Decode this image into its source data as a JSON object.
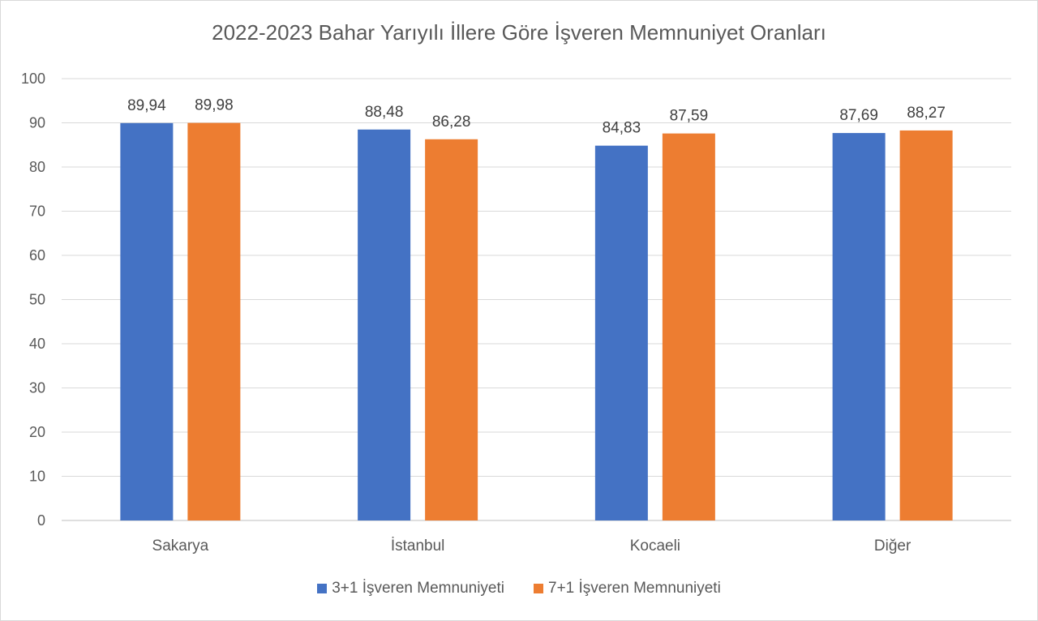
{
  "chart_data": {
    "type": "bar",
    "title": "2022-2023 Bahar Yarıyılı İllere Göre İşveren Memnuniyet Oranları",
    "categories": [
      "Sakarya",
      "İstanbul",
      "Kocaeli",
      "Diğer"
    ],
    "series": [
      {
        "name": "3+1 İşveren Memnuniyeti",
        "color": "#4472C4",
        "values": [
          89.94,
          88.48,
          84.83,
          87.69
        ],
        "labels": [
          "89,94",
          "88,48",
          "84,83",
          "87,69"
        ]
      },
      {
        "name": "7+1 İşveren Memnuniyeti",
        "color": "#ED7D31",
        "values": [
          89.98,
          86.28,
          87.59,
          88.27
        ],
        "labels": [
          "89,98",
          "86,28",
          "87,59",
          "88,27"
        ]
      }
    ],
    "ylim": [
      0,
      100
    ],
    "yticks": [
      0,
      10,
      20,
      30,
      40,
      50,
      60,
      70,
      80,
      90,
      100
    ],
    "xlabel": "",
    "ylabel": "",
    "grid": true,
    "legend_position": "bottom"
  }
}
